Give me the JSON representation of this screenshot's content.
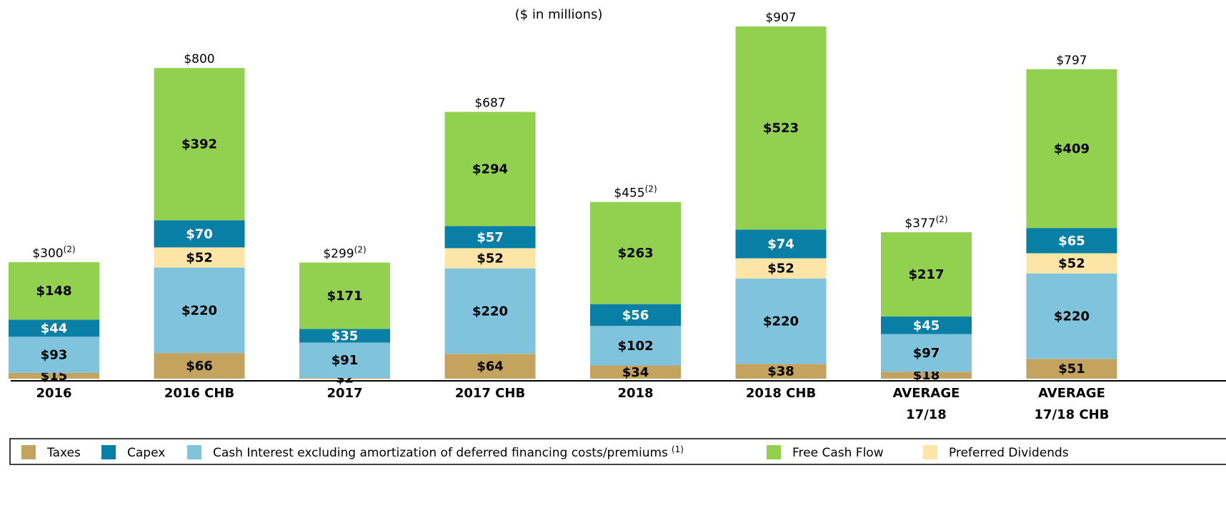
{
  "chart_data": {
    "type": "stacked_bar",
    "subtitle": "($ in millions)",
    "categories": [
      "2016",
      "2016 CHB",
      "2017",
      "2017 CHB",
      "2018",
      "2018 CHB",
      "AVERAGE 17/18",
      "AVERAGE 17/18 CHB"
    ],
    "ylim": [
      0,
      1000
    ],
    "series": [
      {
        "name": "Taxes",
        "color": "#c4a35f",
        "label_color": "#000000",
        "values": [
          15,
          66,
          2,
          64,
          34,
          38,
          18,
          51
        ],
        "value_labels": [
          "$15",
          "$66",
          "$2",
          "$64",
          "$34",
          "$38",
          "$18",
          "$51"
        ]
      },
      {
        "name": "Cash Interest excluding amortization of deferred financing costs/premiums",
        "note": "(1)",
        "color": "#7fc3dc",
        "label_color": "#000000",
        "values": [
          93,
          220,
          91,
          220,
          102,
          220,
          97,
          220
        ],
        "value_labels": [
          "$93",
          "$220",
          "$91",
          "$220",
          "$102",
          "$220",
          "$97",
          "$220"
        ]
      },
      {
        "name": "Preferred Dividends",
        "color": "#fde4a7",
        "label_color": "#000000",
        "values": [
          null,
          52,
          null,
          52,
          null,
          52,
          null,
          52
        ],
        "value_labels": [
          null,
          "$52",
          null,
          "$52",
          null,
          "$52",
          null,
          "$52"
        ]
      },
      {
        "name": "Capex",
        "color": "#0a7fa6",
        "label_color": "#ffffff",
        "values": [
          44,
          70,
          35,
          57,
          56,
          74,
          45,
          65
        ],
        "value_labels": [
          "$44",
          "$70",
          "$35",
          "$57",
          "$56",
          "$74",
          "$45",
          "$65"
        ]
      },
      {
        "name": "Free Cash Flow",
        "color": "#92d050",
        "label_color": "#000000",
        "values": [
          148,
          392,
          171,
          294,
          263,
          523,
          217,
          409
        ],
        "value_labels": [
          "$148",
          "$392",
          "$171",
          "$294",
          "$263",
          "$523",
          "$217",
          "$409"
        ]
      }
    ],
    "totals": [
      300,
      800,
      299,
      687,
      455,
      907,
      377,
      797
    ],
    "total_labels": [
      "$300",
      "$800",
      "$299",
      "$687",
      "$455",
      "$907",
      "$377",
      "$797"
    ],
    "total_notes": [
      "(2)",
      null,
      "(2)",
      null,
      "(2)",
      null,
      "(2)",
      null
    ]
  }
}
